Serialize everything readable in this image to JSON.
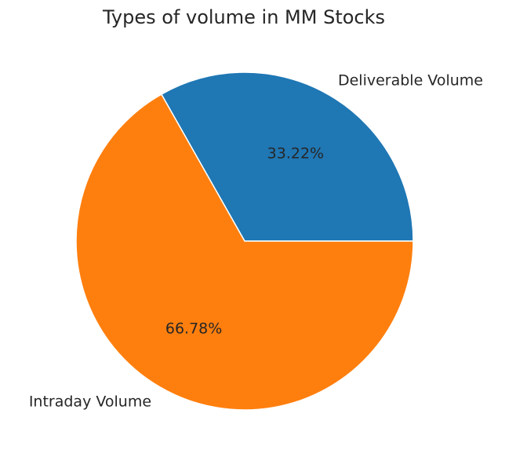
{
  "chart_data": {
    "type": "pie",
    "title": "Types of volume in MM Stocks",
    "labels": [
      "Deliverable Volume",
      "Intraday Volume"
    ],
    "values": [
      33.22,
      66.78
    ],
    "percent_labels": [
      "33.22%",
      "66.78%"
    ],
    "colors": [
      "#1f77b4",
      "#ff7f0e"
    ],
    "start_angle_deg": 0,
    "direction": "counterclockwise",
    "legend": "none"
  }
}
